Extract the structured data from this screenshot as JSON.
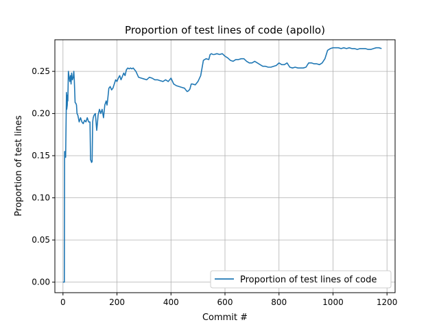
{
  "chart_data": {
    "type": "line",
    "title": "Proportion of test lines of code (apollo)",
    "xlabel": "Commit #",
    "ylabel": "Proportion of test lines",
    "xlim": [
      -30,
      1230
    ],
    "ylim": [
      -0.0125,
      0.2875
    ],
    "xticks": [
      0,
      200,
      400,
      600,
      800,
      1000,
      1200
    ],
    "xtick_labels": [
      "0",
      "200",
      "400",
      "600",
      "800",
      "1000",
      "1200"
    ],
    "yticks": [
      0.0,
      0.05,
      0.1,
      0.15,
      0.2,
      0.25
    ],
    "ytick_labels": [
      "0.00",
      "0.05",
      "0.10",
      "0.15",
      "0.20",
      "0.25"
    ],
    "grid": true,
    "legend_position": "lower-right",
    "series_color": "#1f77b4",
    "series": [
      {
        "name": "Proportion of test lines of code",
        "x": [
          0,
          5,
          6,
          7,
          8,
          10,
          12,
          13,
          14,
          16,
          17,
          18,
          20,
          22,
          25,
          28,
          30,
          32,
          35,
          38,
          40,
          42,
          45,
          48,
          50,
          52,
          55,
          60,
          65,
          70,
          75,
          80,
          85,
          90,
          95,
          100,
          102,
          104,
          106,
          108,
          110,
          112,
          115,
          120,
          125,
          128,
          130,
          135,
          140,
          145,
          150,
          155,
          160,
          163,
          165,
          170,
          175,
          180,
          185,
          190,
          195,
          200,
          205,
          210,
          215,
          220,
          225,
          230,
          235,
          240,
          245,
          250,
          255,
          260,
          270,
          280,
          290,
          300,
          310,
          320,
          330,
          340,
          350,
          360,
          370,
          380,
          390,
          400,
          410,
          420,
          430,
          440,
          450,
          455,
          460,
          465,
          470,
          475,
          480,
          490,
          500,
          510,
          520,
          530,
          540,
          545,
          550,
          555,
          560,
          570,
          580,
          590,
          600,
          610,
          620,
          630,
          640,
          650,
          660,
          670,
          680,
          690,
          700,
          710,
          720,
          730,
          740,
          750,
          760,
          770,
          780,
          790,
          800,
          810,
          820,
          830,
          840,
          850,
          860,
          870,
          880,
          890,
          900,
          910,
          920,
          930,
          940,
          950,
          960,
          970,
          980,
          990,
          1000,
          1010,
          1020,
          1030,
          1040,
          1050,
          1060,
          1070,
          1080,
          1090,
          1100,
          1110,
          1120,
          1130,
          1140,
          1150,
          1160,
          1170,
          1180
        ],
        "y": [
          0.0,
          0.0,
          0.155,
          0.15,
          0.155,
          0.148,
          0.2,
          0.225,
          0.205,
          0.21,
          0.222,
          0.215,
          0.25,
          0.245,
          0.238,
          0.245,
          0.235,
          0.248,
          0.24,
          0.243,
          0.25,
          0.24,
          0.213,
          0.212,
          0.21,
          0.2,
          0.198,
          0.19,
          0.195,
          0.19,
          0.188,
          0.192,
          0.19,
          0.195,
          0.19,
          0.19,
          0.145,
          0.144,
          0.142,
          0.143,
          0.19,
          0.195,
          0.198,
          0.2,
          0.18,
          0.19,
          0.198,
          0.205,
          0.2,
          0.205,
          0.195,
          0.21,
          0.215,
          0.21,
          0.215,
          0.23,
          0.232,
          0.228,
          0.23,
          0.235,
          0.24,
          0.238,
          0.242,
          0.245,
          0.24,
          0.244,
          0.248,
          0.245,
          0.252,
          0.254,
          0.253,
          0.254,
          0.253,
          0.254,
          0.25,
          0.243,
          0.242,
          0.241,
          0.24,
          0.243,
          0.242,
          0.24,
          0.24,
          0.239,
          0.238,
          0.24,
          0.238,
          0.242,
          0.235,
          0.233,
          0.232,
          0.231,
          0.23,
          0.228,
          0.226,
          0.227,
          0.229,
          0.235,
          0.235,
          0.234,
          0.238,
          0.245,
          0.263,
          0.265,
          0.264,
          0.27,
          0.271,
          0.27,
          0.27,
          0.271,
          0.27,
          0.271,
          0.268,
          0.266,
          0.263,
          0.262,
          0.264,
          0.264,
          0.265,
          0.265,
          0.262,
          0.26,
          0.26,
          0.262,
          0.26,
          0.258,
          0.256,
          0.256,
          0.255,
          0.255,
          0.256,
          0.257,
          0.26,
          0.258,
          0.258,
          0.26,
          0.255,
          0.254,
          0.255,
          0.254,
          0.254,
          0.254,
          0.255,
          0.26,
          0.26,
          0.259,
          0.259,
          0.258,
          0.26,
          0.265,
          0.275,
          0.277,
          0.278,
          0.278,
          0.278,
          0.277,
          0.278,
          0.277,
          0.278,
          0.277,
          0.277,
          0.276,
          0.277,
          0.277,
          0.277,
          0.276,
          0.276,
          0.277,
          0.278,
          0.278,
          0.277
        ]
      }
    ]
  }
}
